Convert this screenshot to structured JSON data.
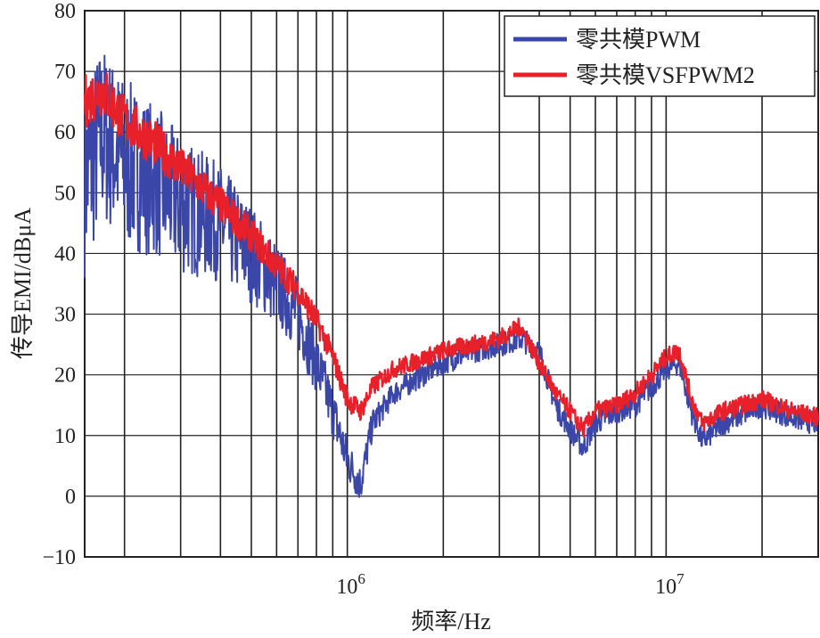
{
  "chart_data": {
    "type": "line",
    "title": "",
    "xlabel": "频率/Hz",
    "ylabel": "传导EMI/dBμA",
    "x_scale": "log",
    "xlim": [
      150000,
      30000000
    ],
    "ylim": [
      -10,
      80
    ],
    "y_ticks": [
      "80",
      "70",
      "60",
      "50",
      "40",
      "30",
      "20",
      "10",
      "0",
      "−10"
    ],
    "x_tick_labels": [
      {
        "value": 1000000,
        "base": "10",
        "exp": "6"
      },
      {
        "value": 10000000,
        "base": "10",
        "exp": "7"
      }
    ],
    "grid": true,
    "legend_position": "top-right",
    "series": [
      {
        "name": "零共模PWM",
        "color": "#3a46a8",
        "x": [
          150000,
          170000,
          200000,
          250000,
          300000,
          400000,
          500000,
          600000,
          700000,
          800000,
          900000,
          1000000,
          1100000,
          1200000,
          1400000,
          1600000,
          2000000,
          2500000,
          3000000,
          3500000,
          4000000,
          4500000,
          5000000,
          5500000,
          6000000,
          7000000,
          8000000,
          9000000,
          10000000,
          11000000,
          12000000,
          13000000,
          15000000,
          20000000,
          25000000,
          30000000
        ],
        "values": [
          52,
          60,
          55,
          52,
          48,
          45,
          40,
          35,
          30,
          22,
          14,
          6,
          2,
          12,
          17,
          19,
          22,
          24,
          25,
          26,
          24,
          15,
          11,
          8,
          12,
          14,
          15,
          18,
          21,
          22,
          14,
          9,
          12,
          15,
          13,
          12
        ]
      },
      {
        "name": "零共模VSFPWM2",
        "color": "#e8202a",
        "x": [
          150000,
          170000,
          200000,
          250000,
          300000,
          400000,
          500000,
          600000,
          700000,
          800000,
          900000,
          1000000,
          1100000,
          1200000,
          1400000,
          1600000,
          2000000,
          2500000,
          3000000,
          3500000,
          4000000,
          4500000,
          5000000,
          5500000,
          6000000,
          7000000,
          8000000,
          9000000,
          10000000,
          11000000,
          12000000,
          13000000,
          15000000,
          20000000,
          25000000,
          30000000
        ],
        "values": [
          65,
          67,
          62,
          58,
          54,
          48,
          43,
          38,
          34,
          29,
          23,
          16,
          14,
          18,
          21,
          22,
          24,
          25,
          26,
          28,
          22,
          17,
          14,
          11,
          14,
          15,
          17,
          20,
          23,
          24,
          16,
          12,
          14,
          16,
          14,
          13
        ]
      }
    ]
  }
}
